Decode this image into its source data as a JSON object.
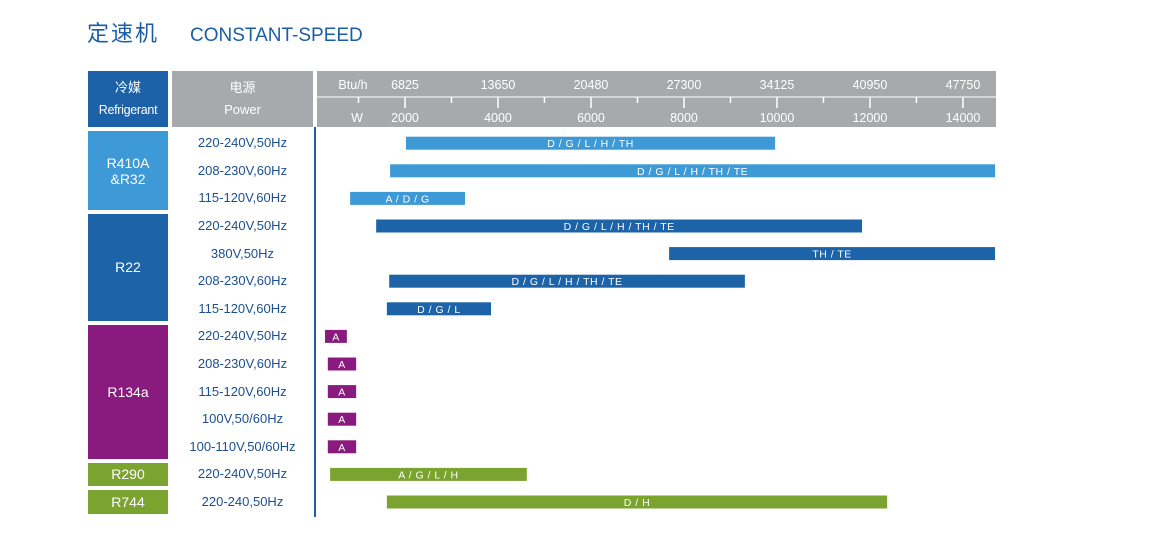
{
  "title": {
    "cn": "定速机",
    "en": "CONSTANT-SPEED"
  },
  "header": {
    "refrigerant_cn": "冷媒",
    "refrigerant_en": "Refrigerant",
    "power_cn": "电源",
    "power_en": "Power"
  },
  "chart_data": {
    "type": "bar",
    "orientation": "horizontal",
    "x_unit": "W",
    "x_unit_secondary": "Btu/h",
    "xlim": [
      0,
      14700
    ],
    "x_ticks": [
      2000,
      4000,
      6000,
      8000,
      10000,
      12000,
      14000
    ],
    "x_tick_labels": [
      "2000",
      "4000",
      "6000",
      "8000",
      "10000",
      "12000",
      "14000"
    ],
    "x_tick_labels_secondary": [
      "6825",
      "13650",
      "20480",
      "27300",
      "34125",
      "40950",
      "47750"
    ],
    "minor_tick_step": 1000,
    "groups": [
      {
        "refrigerant": [
          "R410A",
          "&R32"
        ],
        "color": "#3d9ad7",
        "rows": [
          {
            "power": "220-240V,50Hz",
            "range": [
              2020,
              9960
            ],
            "label": "D / G / L / H / TH"
          },
          {
            "power": "208-230V,60Hz",
            "range": [
              1680,
              14690
            ],
            "label": "D / G / L / H / TH / TE"
          },
          {
            "power": "115-120V,60Hz",
            "range": [
              820,
              3290
            ],
            "label": "A / D / G"
          }
        ]
      },
      {
        "refrigerant": [
          "R22"
        ],
        "color": "#1c63a8",
        "rows": [
          {
            "power": "220-240V,50Hz",
            "range": [
              1380,
              11830
            ],
            "label": "D / G / L / H / TH / TE"
          },
          {
            "power": "380V,50Hz",
            "range": [
              7680,
              14690
            ],
            "label": "TH / TE"
          },
          {
            "power": "208-230V,60Hz",
            "range": [
              1660,
              9310
            ],
            "label": "D / G / L / H / TH / TE"
          },
          {
            "power": "115-120V,60Hz",
            "range": [
              1610,
              3850
            ],
            "label": "D / G / L"
          }
        ]
      },
      {
        "refrigerant": [
          "R134a"
        ],
        "color": "#8a1b7e",
        "rows": [
          {
            "power": "220-240V,50Hz",
            "range": [
              280,
              750
            ],
            "label": "A"
          },
          {
            "power": "208-230V,60Hz",
            "range": [
              340,
              950
            ],
            "label": "A"
          },
          {
            "power": "115-120V,60Hz",
            "range": [
              340,
              950
            ],
            "label": "A"
          },
          {
            "power": "100V,50/60Hz",
            "range": [
              340,
              950
            ],
            "label": "A"
          },
          {
            "power": "100-110V,50/60Hz",
            "range": [
              340,
              950
            ],
            "label": "A"
          }
        ]
      },
      {
        "refrigerant": [
          "R290"
        ],
        "color": "#7ba32f",
        "rows": [
          {
            "power": "220-240V,50Hz",
            "range": [
              390,
              4620
            ],
            "label": "A / G / L / H"
          }
        ]
      },
      {
        "refrigerant": [
          "R744"
        ],
        "color": "#7ba32f",
        "rows": [
          {
            "power": "220-240,50Hz",
            "range": [
              1610,
              12370
            ],
            "label": "D / H"
          }
        ]
      }
    ]
  }
}
